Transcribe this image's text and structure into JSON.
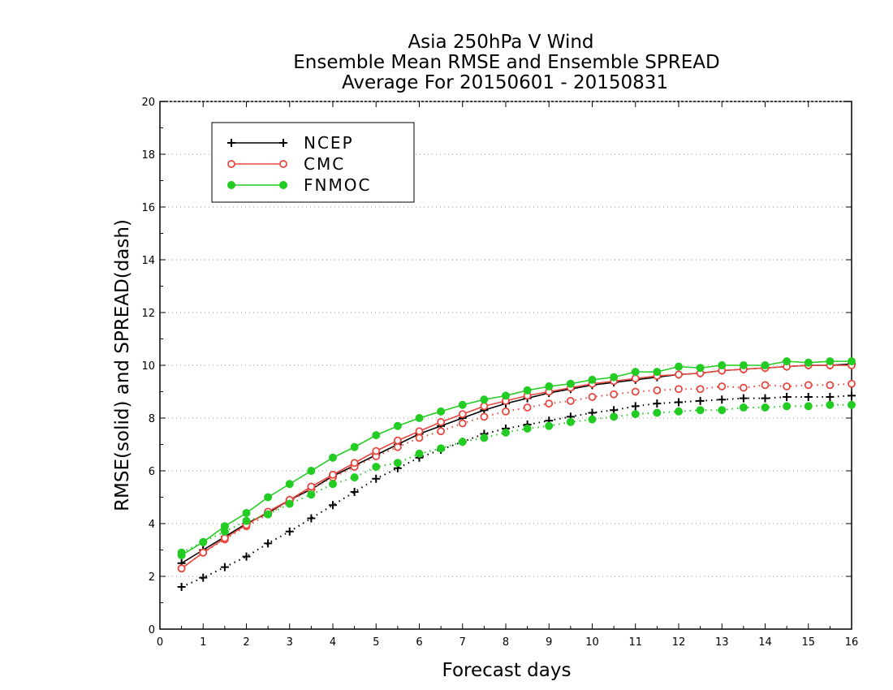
{
  "chart_data": {
    "type": "line",
    "title": [
      "Asia 250hPa V Wind",
      "Ensemble Mean RMSE and Ensemble SPREAD",
      "Average For 20150601 - 20150831"
    ],
    "xlabel": "Forecast days",
    "ylabel": "RMSE(solid) and SPREAD(dash)",
    "xlim": [
      0,
      16
    ],
    "ylim": [
      0,
      20
    ],
    "x_ticks": [
      "0",
      "1",
      "2",
      "3",
      "4",
      "5",
      "6",
      "7",
      "8",
      "9",
      "10",
      "11",
      "12",
      "13",
      "14",
      "15",
      "16"
    ],
    "y_ticks": [
      "0",
      "2",
      "4",
      "6",
      "8",
      "10",
      "12",
      "14",
      "16",
      "18",
      "20"
    ],
    "grid": "horizontal dotted",
    "legend_position": "top-left",
    "x": [
      0.5,
      1,
      1.5,
      2,
      2.5,
      3,
      3.5,
      4,
      4.5,
      5,
      5.5,
      6,
      6.5,
      7,
      7.5,
      8,
      8.5,
      9,
      9.5,
      10,
      10.5,
      11,
      11.5,
      12,
      12.5,
      13,
      13.5,
      14,
      14.5,
      15,
      15.5,
      16
    ],
    "series": [
      {
        "name": "NCEP",
        "color": "#000000",
        "marker": "plus",
        "rmse": [
          2.5,
          3.0,
          3.5,
          4.0,
          4.4,
          4.9,
          5.3,
          5.8,
          6.2,
          6.6,
          7.0,
          7.4,
          7.7,
          8.0,
          8.3,
          8.55,
          8.75,
          8.95,
          9.1,
          9.25,
          9.35,
          9.45,
          9.55,
          9.65,
          9.7,
          9.8,
          9.85,
          9.9,
          9.95,
          10.0,
          10.0,
          10.05
        ],
        "spread": [
          1.6,
          1.95,
          2.35,
          2.75,
          3.25,
          3.7,
          4.2,
          4.7,
          5.2,
          5.7,
          6.1,
          6.5,
          6.8,
          7.1,
          7.4,
          7.6,
          7.75,
          7.9,
          8.05,
          8.2,
          8.3,
          8.45,
          8.55,
          8.6,
          8.65,
          8.7,
          8.75,
          8.75,
          8.8,
          8.8,
          8.8,
          8.85
        ]
      },
      {
        "name": "CMC",
        "color": "#e8473f",
        "marker": "open-circle",
        "rmse": [
          2.3,
          2.9,
          3.45,
          3.95,
          4.45,
          4.9,
          5.4,
          5.85,
          6.3,
          6.75,
          7.15,
          7.5,
          7.85,
          8.15,
          8.45,
          8.65,
          8.85,
          9.0,
          9.15,
          9.3,
          9.4,
          9.5,
          9.6,
          9.65,
          9.7,
          9.8,
          9.85,
          9.9,
          9.95,
          10.0,
          10.0,
          10.0
        ],
        "spread": [
          2.3,
          2.9,
          3.4,
          3.9,
          4.35,
          4.85,
          5.3,
          5.75,
          6.15,
          6.55,
          6.9,
          7.25,
          7.5,
          7.8,
          8.05,
          8.25,
          8.4,
          8.55,
          8.65,
          8.8,
          8.9,
          9.0,
          9.05,
          9.1,
          9.1,
          9.2,
          9.15,
          9.25,
          9.2,
          9.25,
          9.25,
          9.3
        ]
      },
      {
        "name": "FNMOC",
        "color": "#22cc22",
        "marker": "filled-circle",
        "rmse": [
          2.8,
          3.3,
          3.9,
          4.4,
          5.0,
          5.5,
          6.0,
          6.5,
          6.9,
          7.35,
          7.7,
          8.0,
          8.25,
          8.5,
          8.7,
          8.85,
          9.05,
          9.2,
          9.3,
          9.45,
          9.55,
          9.75,
          9.75,
          9.95,
          9.9,
          10.0,
          10.0,
          10.0,
          10.15,
          10.1,
          10.15,
          10.15
        ],
        "spread": [
          2.9,
          3.3,
          3.7,
          4.1,
          4.35,
          4.75,
          5.1,
          5.5,
          5.75,
          6.15,
          6.3,
          6.65,
          6.85,
          7.1,
          7.25,
          7.45,
          7.6,
          7.7,
          7.85,
          7.95,
          8.05,
          8.15,
          8.2,
          8.25,
          8.3,
          8.3,
          8.4,
          8.4,
          8.45,
          8.45,
          8.5,
          8.5
        ]
      }
    ]
  }
}
